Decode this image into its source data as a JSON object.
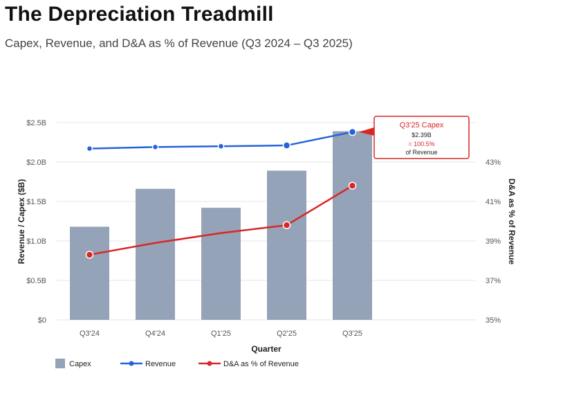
{
  "header": {
    "title": "The Depreciation Treadmill",
    "subtitle": "Capex, Revenue, and D&A as % of Revenue (Q3 2024 – Q3 2025)"
  },
  "colors": {
    "capex": "#94a3b8",
    "revenue": "#2563d9",
    "da": "#d92626",
    "grid": "#e5e5e5"
  },
  "chart_data": {
    "type": "bar",
    "title": "The Depreciation Treadmill",
    "categories": [
      "Q3'24",
      "Q4'24",
      "Q1'25",
      "Q2'25",
      "Q3'25"
    ],
    "xlabel": "Quarter",
    "ylabel": "Revenue / Capex ($B)",
    "y2label": "D&A as % of Revenue",
    "ylim": [
      0,
      2.5
    ],
    "y2lim": [
      35,
      45
    ],
    "yticks": [
      0,
      0.5,
      1.0,
      1.5,
      2.0,
      2.5
    ],
    "ytick_labels": [
      "$0",
      "$0.5B",
      "$1.0B",
      "$1.5B",
      "$2.0B",
      "$2.5B"
    ],
    "y2ticks": [
      35,
      37,
      39,
      41,
      43
    ],
    "y2tick_labels": [
      "35%",
      "37%",
      "39%",
      "41%",
      "43%"
    ],
    "series": [
      {
        "name": "Capex",
        "type": "bar",
        "axis": "left",
        "values": [
          1.18,
          1.66,
          1.42,
          1.89,
          2.39
        ]
      },
      {
        "name": "Revenue",
        "type": "line",
        "axis": "left",
        "values": [
          2.17,
          2.19,
          2.2,
          2.21,
          2.38
        ]
      },
      {
        "name": "D&A as % of Revenue",
        "type": "line",
        "axis": "right",
        "values": [
          38.3,
          38.9,
          39.4,
          39.8,
          41.8
        ]
      }
    ],
    "legend": [
      "Capex",
      "Revenue",
      "D&A as % of Revenue"
    ],
    "legend_position": "bottom-left",
    "annotation": {
      "title": "Q3'25 Capex",
      "value": "$2.39B",
      "ratio": "= 100.5%",
      "note": "of Revenue",
      "target_index": 4
    }
  }
}
